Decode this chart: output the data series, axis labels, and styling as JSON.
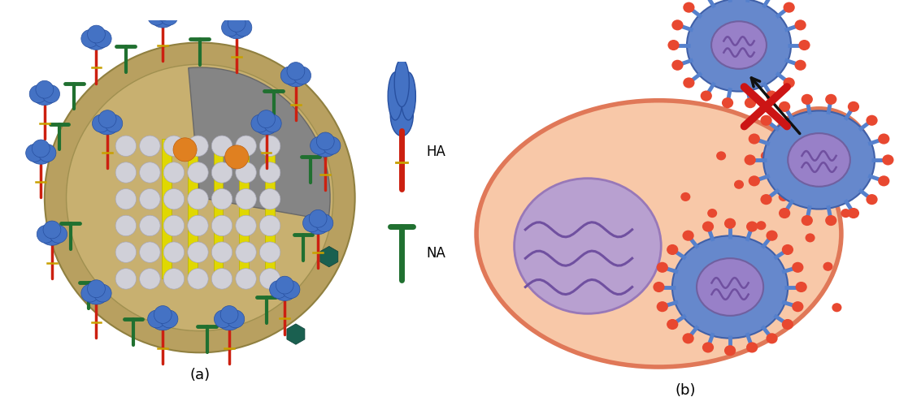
{
  "fig_width": 11.17,
  "fig_height": 5.05,
  "bg_color": "#ffffff",
  "label_a": "(a)",
  "label_b": "(b)",
  "legend_ha_label": "HA",
  "legend_na_label": "NA",
  "cell_fill": "#f8c8a8",
  "cell_edge": "#e07858",
  "cell_lw": 4,
  "nucleus_fill": "#b8a0d0",
  "nucleus_edge": "#9878b8",
  "nucleus_lw": 2,
  "virion_core_fill": "#9880c8",
  "virion_core_edge": "#7060a0",
  "virion_env_fill": "#6688cc",
  "virion_env_edge": "#4060a8",
  "spike_blue_fill": "#5580cc",
  "spike_red_dot": "#e84830",
  "small_dot_fill": "#e84830",
  "cross_color": "#cc1515",
  "arrow_color": "#111111",
  "zigzag_color": "#7050a0",
  "virus_bg": "#b8a060",
  "virus_inner": "#c8b070"
}
